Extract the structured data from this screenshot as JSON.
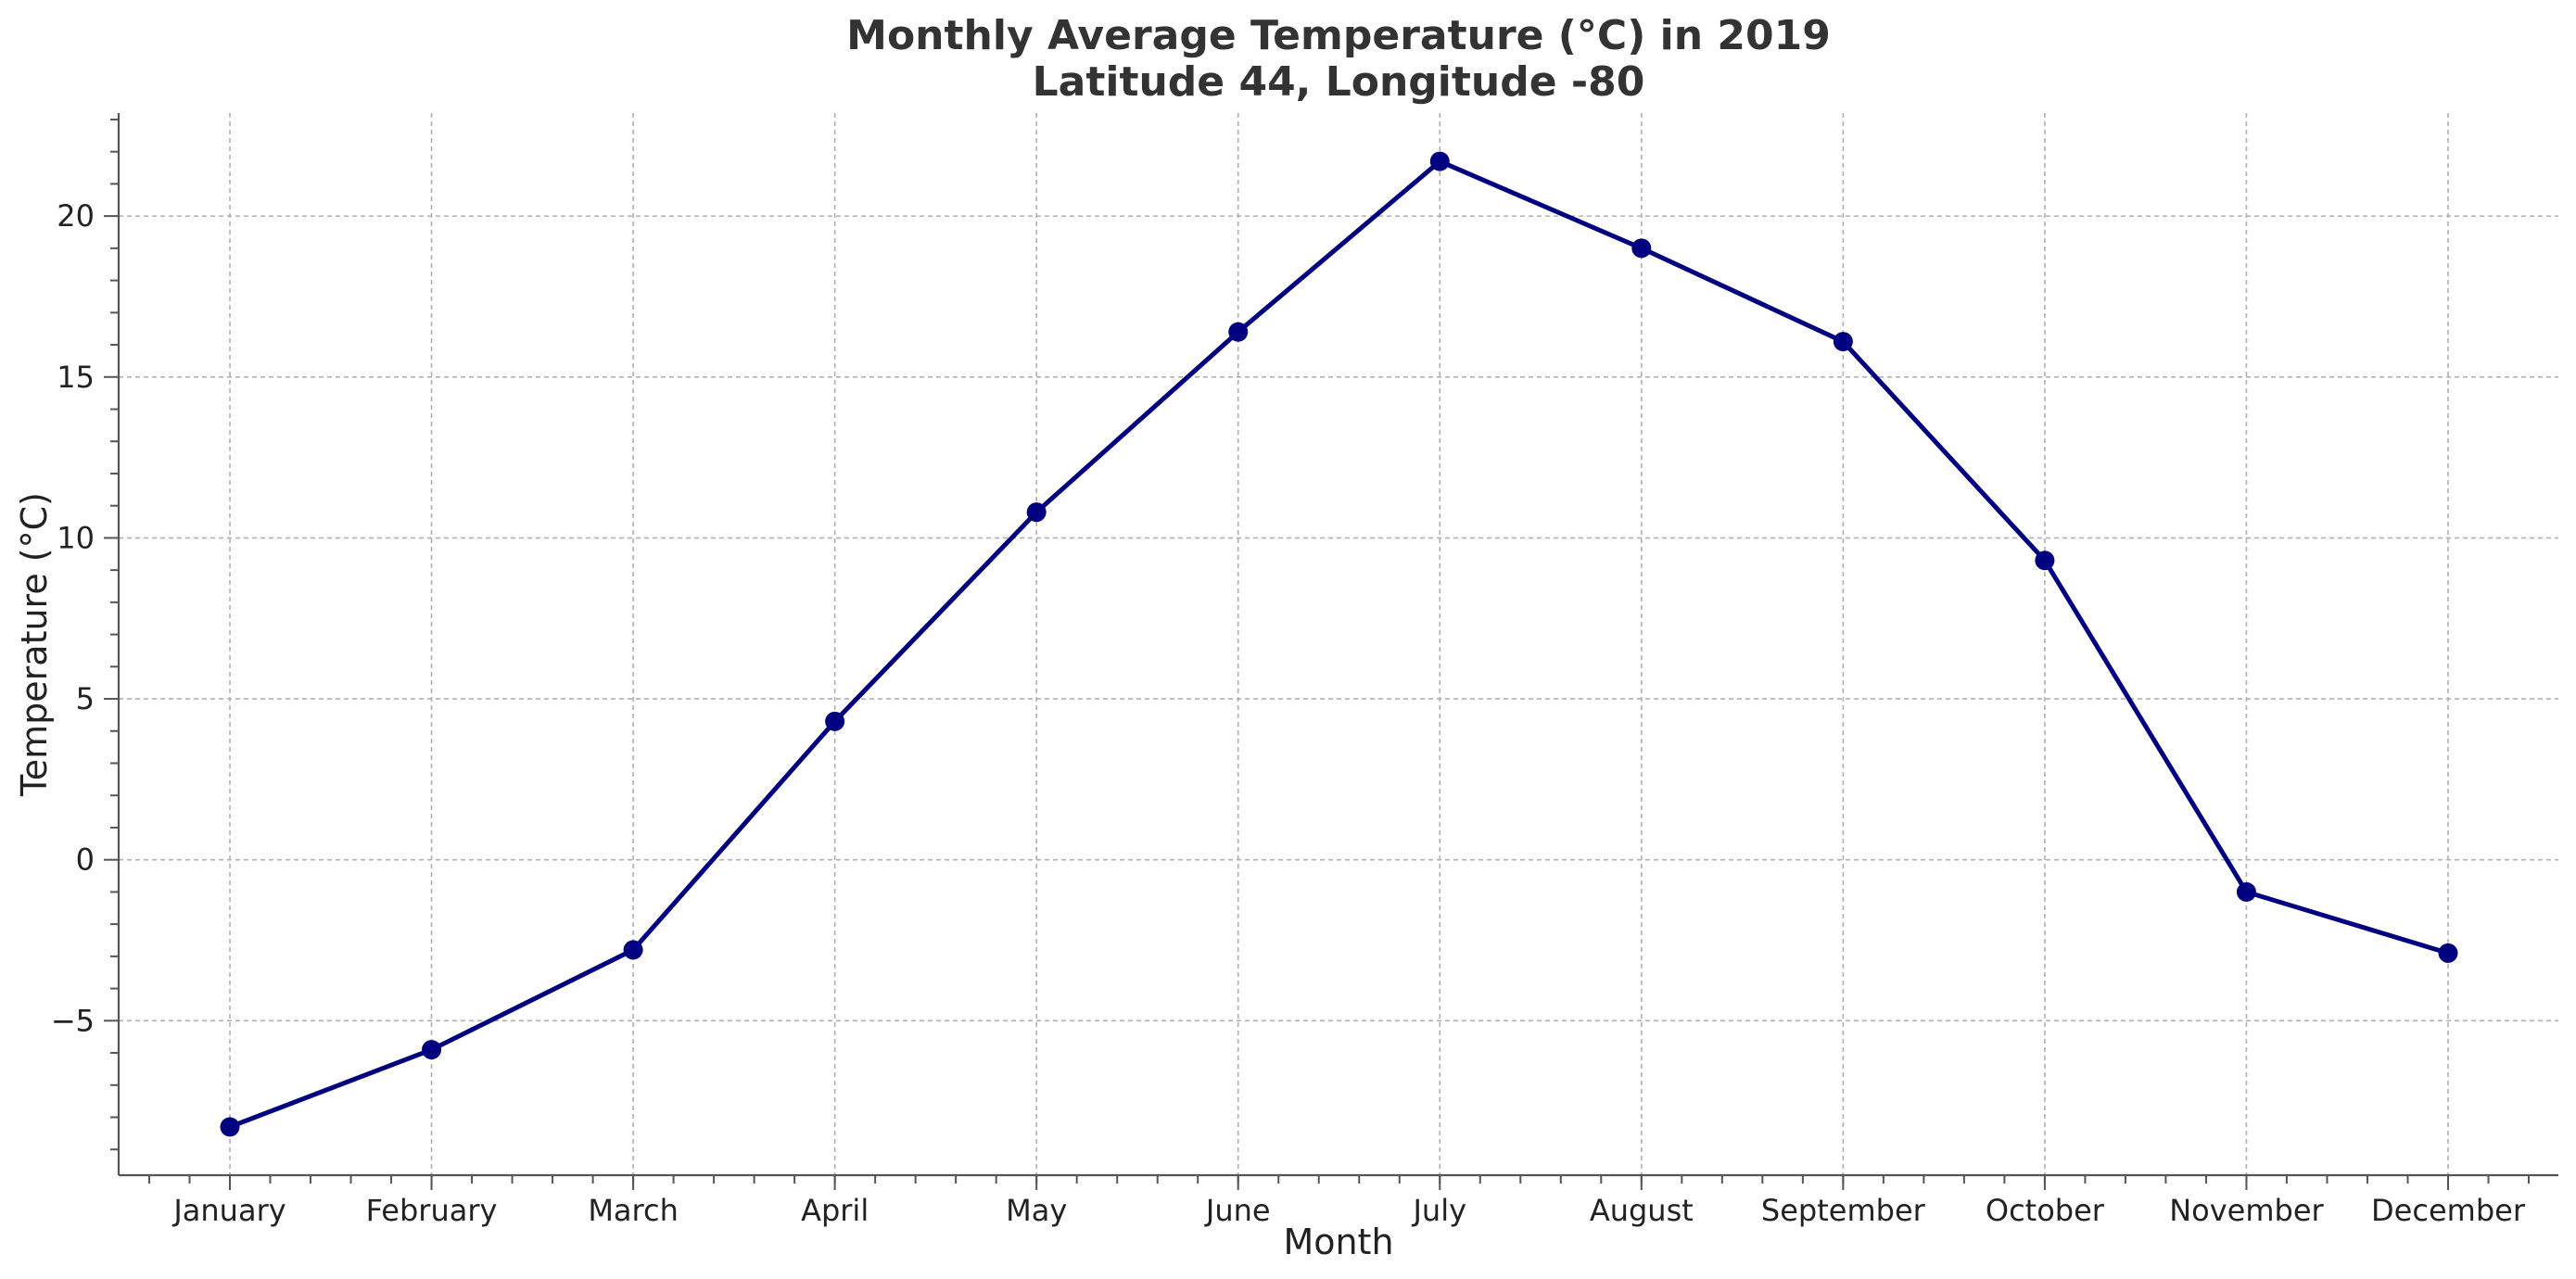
{
  "chart_data": {
    "type": "line",
    "title": "Monthly Average Temperature (°C) in 2019",
    "subtitle": "Latitude 44, Longitude -80",
    "xlabel": "Month",
    "ylabel": "Temperature (°C)",
    "categories": [
      "January",
      "February",
      "March",
      "April",
      "May",
      "June",
      "July",
      "August",
      "September",
      "October",
      "November",
      "December"
    ],
    "series": [
      {
        "name": "Temperature",
        "color": "#000080",
        "values": [
          -8.3,
          -5.9,
          -2.8,
          4.3,
          10.8,
          16.4,
          21.7,
          19.0,
          16.1,
          9.3,
          -1.0,
          -2.9
        ]
      }
    ],
    "ylim": [
      -9.8,
      23.2
    ],
    "yticks": [
      -5,
      0,
      5,
      10,
      15,
      20
    ],
    "ytick_labels": [
      "−5",
      "0",
      "5",
      "10",
      "15",
      "20"
    ],
    "grid": true,
    "legend": "none"
  }
}
